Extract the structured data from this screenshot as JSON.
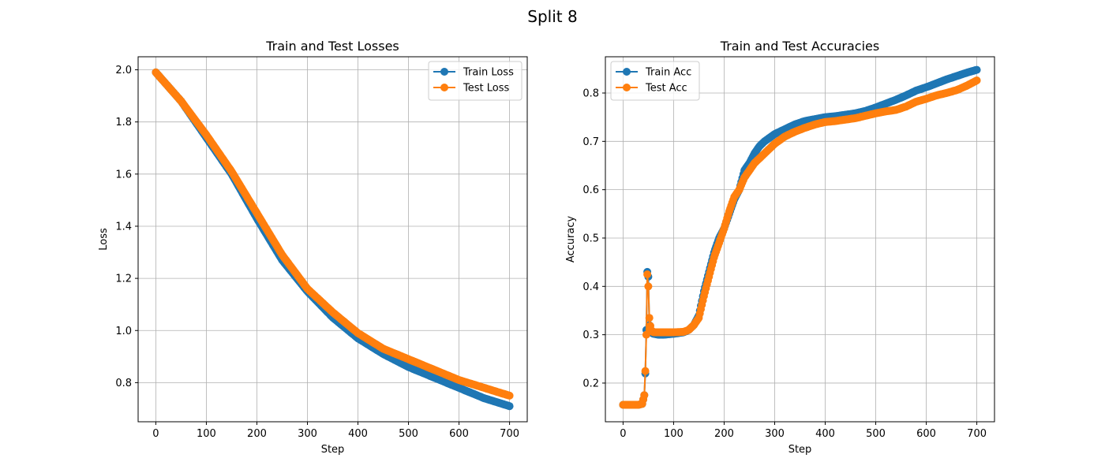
{
  "figure": {
    "title": "Split 8"
  },
  "colors": {
    "train": "#1f77b4",
    "test": "#ff7f0e",
    "grid": "#b0b0b0"
  },
  "chart_data": [
    {
      "type": "line",
      "title": "Train and Test Losses",
      "xlabel": "Step",
      "ylabel": "Loss",
      "xlim": [
        -35,
        735
      ],
      "ylim": [
        0.65,
        2.05
      ],
      "xticks": [
        0,
        100,
        200,
        300,
        400,
        500,
        600,
        700
      ],
      "yticks": [
        0.8,
        1.0,
        1.2,
        1.4,
        1.6,
        1.8,
        2.0
      ],
      "ytick_labels": [
        "0.8",
        "1.0",
        "1.2",
        "1.4",
        "1.6",
        "1.8",
        "2.0"
      ],
      "grid": true,
      "legend_position": "top-right",
      "series": [
        {
          "name": "Train Loss",
          "x": [
            0,
            50,
            100,
            150,
            200,
            250,
            300,
            350,
            400,
            450,
            500,
            550,
            600,
            650,
            700
          ],
          "y": [
            1.99,
            1.88,
            1.74,
            1.6,
            1.43,
            1.27,
            1.15,
            1.05,
            0.97,
            0.91,
            0.86,
            0.82,
            0.78,
            0.74,
            0.71
          ]
        },
        {
          "name": "Test Loss",
          "x": [
            0,
            50,
            100,
            150,
            200,
            250,
            300,
            350,
            400,
            450,
            500,
            550,
            600,
            650,
            700
          ],
          "y": [
            1.99,
            1.88,
            1.75,
            1.61,
            1.45,
            1.29,
            1.16,
            1.07,
            0.99,
            0.93,
            0.89,
            0.85,
            0.81,
            0.78,
            0.75
          ]
        }
      ]
    },
    {
      "type": "line",
      "title": "Train and Test Accuracies",
      "xlabel": "Step",
      "ylabel": "Accuracy",
      "xlim": [
        -35,
        735
      ],
      "ylim": [
        0.12,
        0.875
      ],
      "xticks": [
        0,
        100,
        200,
        300,
        400,
        500,
        600,
        700
      ],
      "yticks": [
        0.2,
        0.3,
        0.4,
        0.5,
        0.6,
        0.7,
        0.8
      ],
      "ytick_labels": [
        "0.2",
        "0.3",
        "0.4",
        "0.5",
        "0.6",
        "0.7",
        "0.8"
      ],
      "grid": true,
      "legend_position": "top-left",
      "series": [
        {
          "name": "Train Acc",
          "x": [
            0,
            10,
            20,
            30,
            38,
            42,
            44,
            46,
            48,
            50,
            52,
            55,
            60,
            70,
            80,
            100,
            120,
            130,
            140,
            150,
            160,
            170,
            180,
            190,
            200,
            210,
            220,
            230,
            240,
            250,
            260,
            270,
            280,
            300,
            320,
            340,
            360,
            380,
            400,
            420,
            440,
            460,
            480,
            500,
            520,
            540,
            560,
            580,
            600,
            620,
            640,
            660,
            680,
            700
          ],
          "y": [
            0.155,
            0.155,
            0.155,
            0.155,
            0.157,
            0.175,
            0.22,
            0.31,
            0.43,
            0.42,
            0.32,
            0.305,
            0.302,
            0.3,
            0.3,
            0.302,
            0.305,
            0.31,
            0.32,
            0.34,
            0.39,
            0.43,
            0.47,
            0.5,
            0.52,
            0.55,
            0.58,
            0.6,
            0.64,
            0.655,
            0.675,
            0.69,
            0.7,
            0.715,
            0.725,
            0.735,
            0.742,
            0.746,
            0.75,
            0.752,
            0.755,
            0.758,
            0.763,
            0.77,
            0.778,
            0.786,
            0.795,
            0.805,
            0.812,
            0.82,
            0.828,
            0.835,
            0.842,
            0.848
          ]
        },
        {
          "name": "Test Acc",
          "x": [
            0,
            10,
            20,
            30,
            38,
            42,
            44,
            46,
            48,
            50,
            52,
            55,
            60,
            70,
            80,
            100,
            120,
            130,
            140,
            150,
            160,
            170,
            180,
            190,
            200,
            210,
            220,
            230,
            240,
            250,
            260,
            270,
            280,
            300,
            320,
            340,
            360,
            380,
            400,
            420,
            440,
            460,
            480,
            500,
            520,
            540,
            560,
            580,
            600,
            620,
            640,
            660,
            680,
            700
          ],
          "y": [
            0.155,
            0.155,
            0.155,
            0.155,
            0.157,
            0.175,
            0.225,
            0.3,
            0.425,
            0.4,
            0.335,
            0.31,
            0.305,
            0.305,
            0.305,
            0.305,
            0.306,
            0.31,
            0.32,
            0.335,
            0.38,
            0.42,
            0.46,
            0.49,
            0.52,
            0.555,
            0.585,
            0.6,
            0.625,
            0.64,
            0.655,
            0.665,
            0.675,
            0.695,
            0.71,
            0.72,
            0.728,
            0.735,
            0.74,
            0.742,
            0.745,
            0.748,
            0.753,
            0.758,
            0.762,
            0.765,
            0.772,
            0.782,
            0.788,
            0.795,
            0.8,
            0.806,
            0.815,
            0.826
          ]
        }
      ]
    }
  ]
}
